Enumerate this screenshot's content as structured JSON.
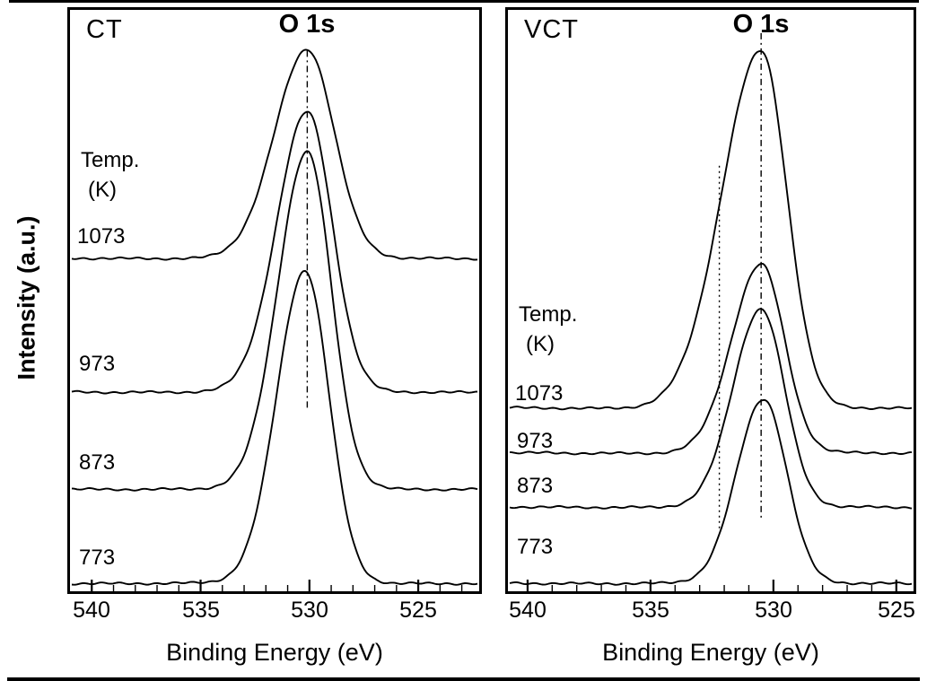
{
  "figure": {
    "background": "#ffffff",
    "line_color": "#000000"
  },
  "chart_data": [
    {
      "type": "line",
      "panel_label": "CT",
      "title": "O 1s",
      "xlabel": "Binding Energy (eV)",
      "ylabel": "Intensity (a.u.)",
      "legend_header": {
        "line1": "Temp.",
        "line2": "(K)"
      },
      "x_axis": {
        "unit": "eV",
        "min_eV": 541.0,
        "max_eV": 522.2,
        "reversed": true,
        "ticks": [
          540,
          535,
          530,
          525
        ],
        "minor_tick_eV": 1,
        "grid": false
      },
      "y_axis": {
        "label": "Intensity (a.u.)",
        "units": "arbitrary",
        "ticks": []
      },
      "peak_markers": [
        {
          "x_eV": 530.1,
          "style": "dash-dot",
          "y_top_frac": 0.07,
          "y_bottom_frac": 0.685
        }
      ],
      "series": [
        {
          "name": "1073",
          "temperature_K": 1073,
          "peak_center_eV": 530.1,
          "baseline_frac": 0.427,
          "amplitude_frac": 0.358,
          "sigma_high_be_eV": 1.5,
          "sigma_low_be_eV": 1.25
        },
        {
          "name": "973",
          "temperature_K": 973,
          "peak_center_eV": 530.1,
          "baseline_frac": 0.657,
          "amplitude_frac": 0.481,
          "sigma_high_be_eV": 1.4,
          "sigma_low_be_eV": 1.15
        },
        {
          "name": "873",
          "temperature_K": 873,
          "peak_center_eV": 530.1,
          "baseline_frac": 0.824,
          "amplitude_frac": 0.579,
          "sigma_high_be_eV": 1.35,
          "sigma_low_be_eV": 1.1
        },
        {
          "name": "773",
          "temperature_K": 773,
          "peak_center_eV": 530.2,
          "baseline_frac": 0.986,
          "amplitude_frac": 0.537,
          "sigma_high_be_eV": 1.3,
          "sigma_low_be_eV": 1.1
        }
      ]
    },
    {
      "type": "line",
      "panel_label": "VCT",
      "title": "O 1s",
      "xlabel": "Binding Energy (eV)",
      "ylabel": "Intensity (a.u.)",
      "legend_header": {
        "line1": "Temp.",
        "line2": "(K)"
      },
      "x_axis": {
        "unit": "eV",
        "min_eV": 540.8,
        "max_eV": 524.3,
        "reversed": true,
        "ticks": [
          540,
          535,
          530,
          525
        ],
        "minor_tick_eV": 1,
        "grid": false
      },
      "y_axis": {
        "label": "Intensity (a.u.)",
        "units": "arbitrary",
        "ticks": []
      },
      "peak_markers": [
        {
          "x_eV": 532.2,
          "style": "dotted",
          "y_top_frac": 0.268,
          "y_bottom_frac": 0.893
        },
        {
          "x_eV": 530.5,
          "style": "dash-dot",
          "y_top_frac": 0.04,
          "y_bottom_frac": 0.875
        }
      ],
      "series": [
        {
          "name": "1073",
          "temperature_K": 1073,
          "peak_center_eV": 530.5,
          "baseline_frac": 0.685,
          "amplitude_frac": 0.614,
          "sigma_high_be_eV": 1.6,
          "sigma_low_be_eV": 1.05
        },
        {
          "name": "973",
          "temperature_K": 973,
          "peak_center_eV": 530.5,
          "baseline_frac": 0.762,
          "amplitude_frac": 0.324,
          "sigma_high_be_eV": 1.2,
          "sigma_low_be_eV": 0.95
        },
        {
          "name": "873",
          "temperature_K": 873,
          "peak_center_eV": 530.5,
          "baseline_frac": 0.855,
          "amplitude_frac": 0.34,
          "sigma_high_be_eV": 1.15,
          "sigma_low_be_eV": 0.95
        },
        {
          "name": "773",
          "temperature_K": 773,
          "peak_center_eV": 530.4,
          "baseline_frac": 0.986,
          "amplitude_frac": 0.316,
          "sigma_high_be_eV": 1.1,
          "sigma_low_be_eV": 0.95
        }
      ]
    }
  ]
}
